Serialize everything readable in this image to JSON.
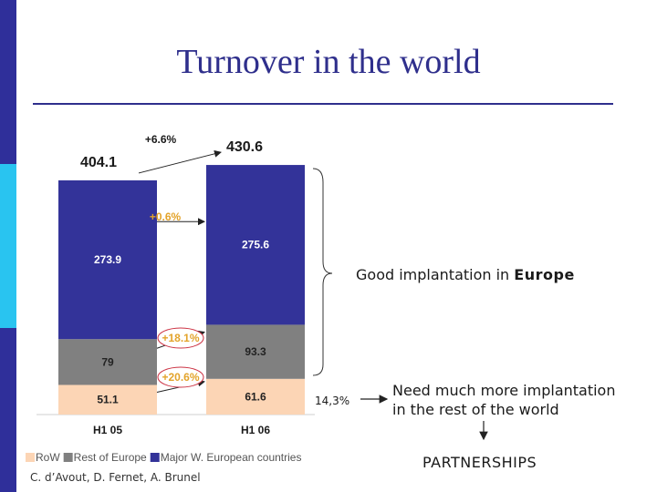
{
  "slide": {
    "title": "Turnover in the world",
    "footer": "C. d’Avout, D. Fernet, A. Brunel",
    "sidebar_colors": [
      "#2f2f9a",
      "#29c4f0",
      "#2f2f9a"
    ]
  },
  "notes": {
    "europe_prefix": "Good implantation in ",
    "europe_bold": "Europe",
    "percent_rest": "14,3%",
    "rest_line1": "Need much more implantation",
    "rest_line2": "in the rest of the world",
    "partnerships": "PARTNERSHIPS"
  },
  "chart_data": {
    "type": "bar",
    "stacked": true,
    "categories": [
      "H1 05",
      "H1 06"
    ],
    "series": [
      {
        "name": "RoW",
        "color": "#fcd5b5",
        "values": [
          51.1,
          61.6
        ]
      },
      {
        "name": "Rest of Europe",
        "color": "#808080",
        "values": [
          79.0,
          93.3
        ]
      },
      {
        "name": "Major W. European countries",
        "color": "#333399",
        "values": [
          273.9,
          275.6
        ]
      }
    ],
    "totals": [
      404.1,
      430.6
    ],
    "growth": [
      {
        "label": "+6.6%",
        "segment": "total"
      },
      {
        "label": "+0.6%",
        "segment": "Major W. European countries"
      },
      {
        "label": "+18.1%",
        "segment": "Rest of Europe"
      },
      {
        "label": "+20.6%",
        "segment": "RoW"
      }
    ],
    "legend_position": "bottom",
    "ylim": [
      0,
      430.6
    ]
  }
}
